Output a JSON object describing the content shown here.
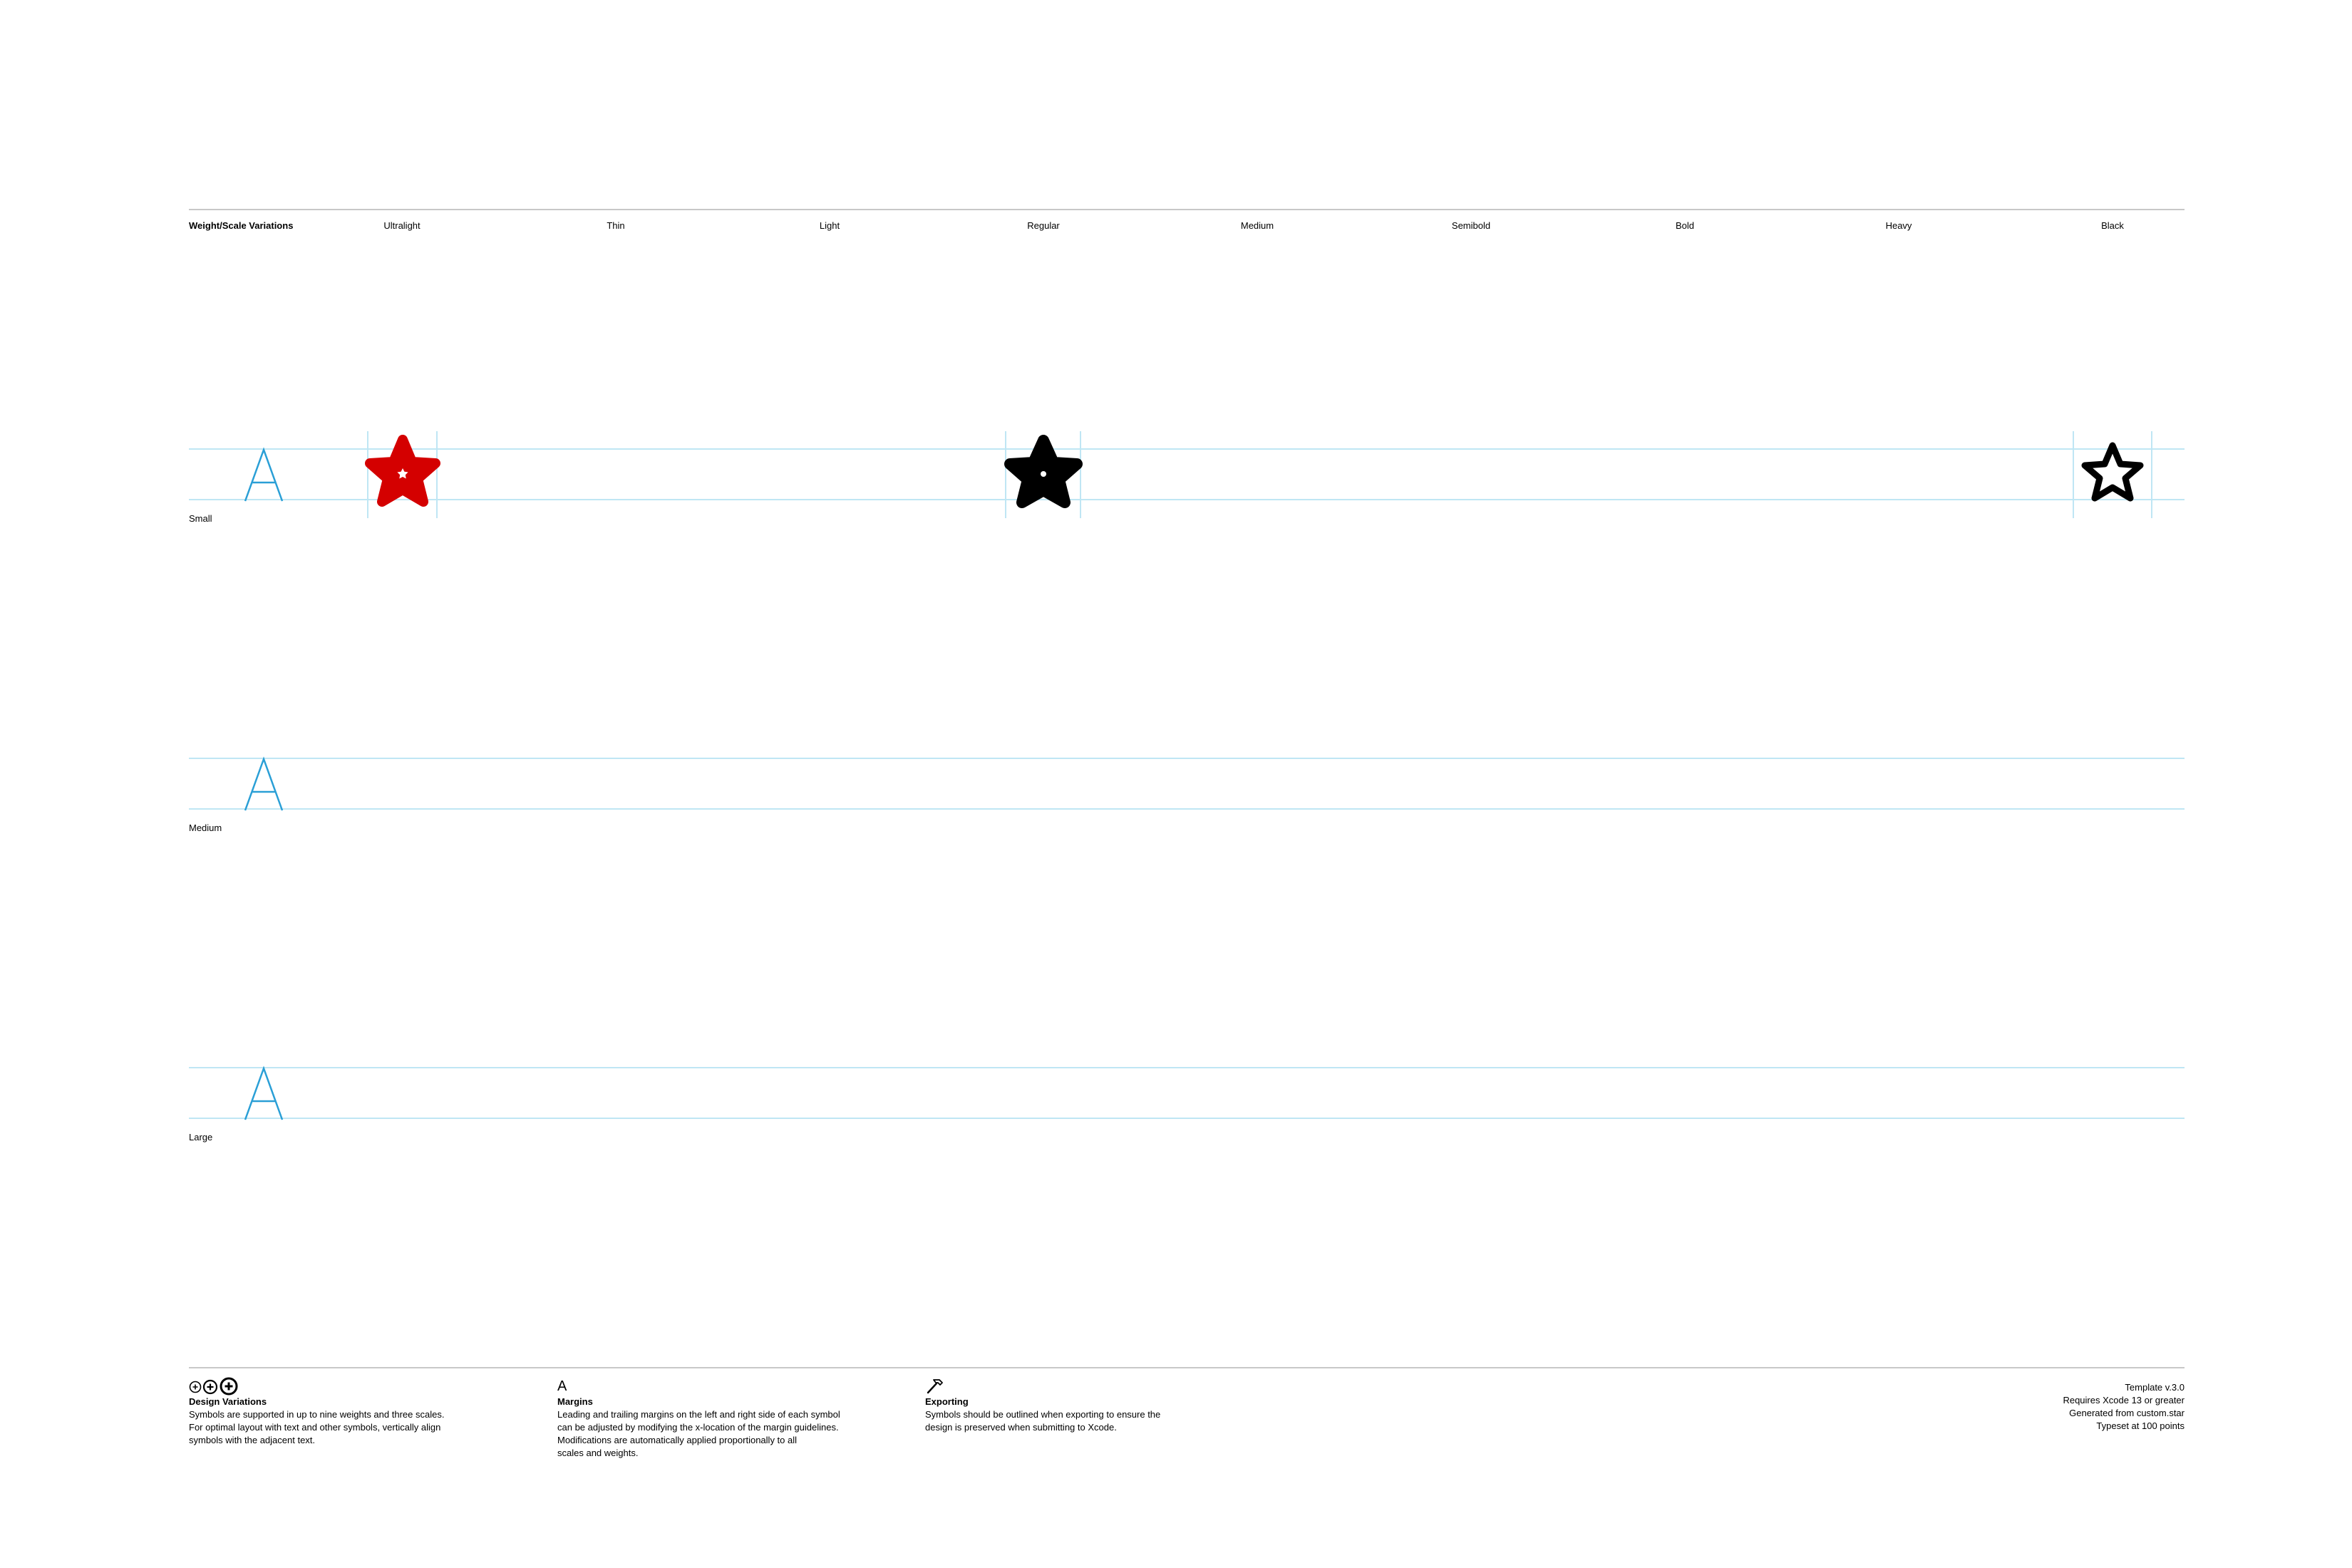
{
  "header": {
    "section_title": "Weight/Scale Variations",
    "weights": [
      "Ultralight",
      "Thin",
      "Light",
      "Regular",
      "Medium",
      "Semibold",
      "Bold",
      "Heavy",
      "Black"
    ]
  },
  "scales": {
    "small": "Small",
    "medium": "Medium",
    "large": "Large"
  },
  "reference_glyph": "A",
  "symbols": [
    {
      "weight": "Ultralight",
      "scale": "Small",
      "style": "filled-with-dot",
      "color": "#d40000"
    },
    {
      "weight": "Regular",
      "scale": "Small",
      "style": "filled-with-dot",
      "color": "#000000"
    },
    {
      "weight": "Black",
      "scale": "Small",
      "style": "outline",
      "color": "#000000"
    }
  ],
  "colors": {
    "guide": "#bfe6f4",
    "reference_glyph": "#2a9fd6",
    "rule": "#c8c8c8",
    "accent_symbol": "#d40000"
  },
  "footer": {
    "design_variations": {
      "icon": "three-circled-plus-icons",
      "title": "Design Variations",
      "body": "Symbols are supported in up to nine weights and three scales.\nFor optimal layout with text and other symbols, vertically align\nsymbols with the adjacent text."
    },
    "margins": {
      "icon": "letter-a-icon",
      "icon_glyph": "A",
      "title": "Margins",
      "body": "Leading and trailing margins on the left and right side of each symbol\ncan be adjusted by modifying the x-location of the margin guidelines.\nModifications are automatically applied proportionally to all\nscales and weights."
    },
    "exporting": {
      "icon": "hammer-icon",
      "title": "Exporting",
      "body": "Symbols should be outlined when exporting to ensure the\ndesign is preserved when submitting to Xcode."
    },
    "meta": {
      "template_version": "Template v.3.0",
      "requirement": "Requires Xcode 13 or greater",
      "generated_from": "Generated from custom.star",
      "typeset": "Typeset at 100 points"
    }
  }
}
